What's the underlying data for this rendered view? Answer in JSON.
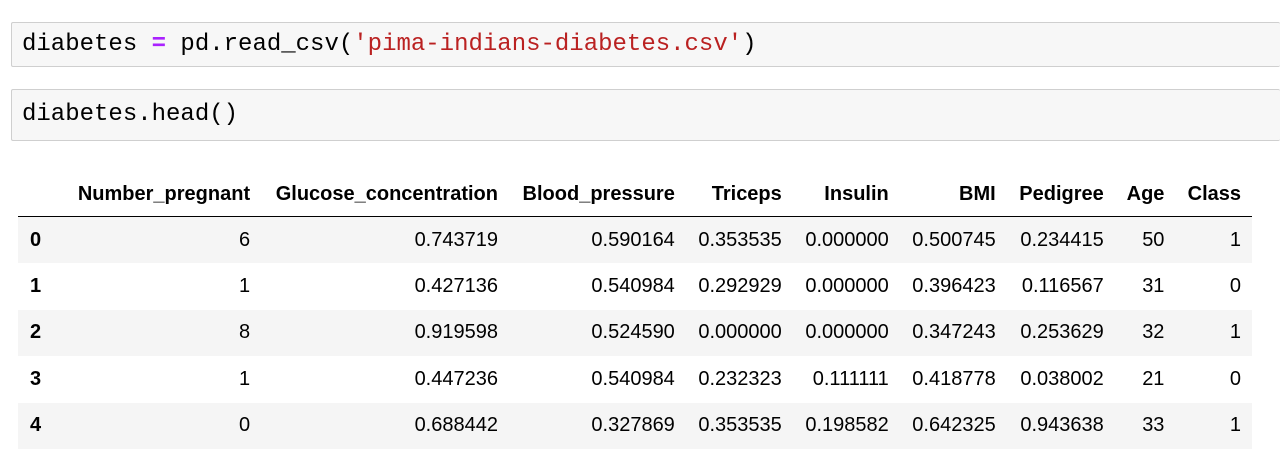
{
  "cells": [
    {
      "tokens": [
        {
          "text": "diabetes ",
          "kind": "plain"
        },
        {
          "text": "=",
          "kind": "op"
        },
        {
          "text": " pd.read_csv(",
          "kind": "plain"
        },
        {
          "text": "'pima-indians-diabetes.csv'",
          "kind": "str"
        },
        {
          "text": ")",
          "kind": "plain"
        }
      ]
    },
    {
      "tokens": [
        {
          "text": "diabetes.head()",
          "kind": "plain"
        }
      ]
    }
  ],
  "table": {
    "index_header": "",
    "columns": [
      "Number_pregnant",
      "Glucose_concentration",
      "Blood_pressure",
      "Triceps",
      "Insulin",
      "BMI",
      "Pedigree",
      "Age",
      "Class"
    ],
    "rows": [
      {
        "index": "0",
        "values": [
          "6",
          "0.743719",
          "0.590164",
          "0.353535",
          "0.000000",
          "0.500745",
          "0.234415",
          "50",
          "1"
        ]
      },
      {
        "index": "1",
        "values": [
          "1",
          "0.427136",
          "0.540984",
          "0.292929",
          "0.000000",
          "0.396423",
          "0.116567",
          "31",
          "0"
        ]
      },
      {
        "index": "2",
        "values": [
          "8",
          "0.919598",
          "0.524590",
          "0.000000",
          "0.000000",
          "0.347243",
          "0.253629",
          "32",
          "1"
        ]
      },
      {
        "index": "3",
        "values": [
          "1",
          "0.447236",
          "0.540984",
          "0.232323",
          "0.111111",
          "0.418778",
          "0.038002",
          "21",
          "0"
        ]
      },
      {
        "index": "4",
        "values": [
          "0",
          "0.688442",
          "0.327869",
          "0.353535",
          "0.198582",
          "0.642325",
          "0.943638",
          "33",
          "1"
        ]
      }
    ]
  },
  "colors": {
    "operator": "#aa22ff",
    "string": "#ba2121",
    "cell_background": "#f7f7f7",
    "row_stripe": "#f5f5f5"
  }
}
